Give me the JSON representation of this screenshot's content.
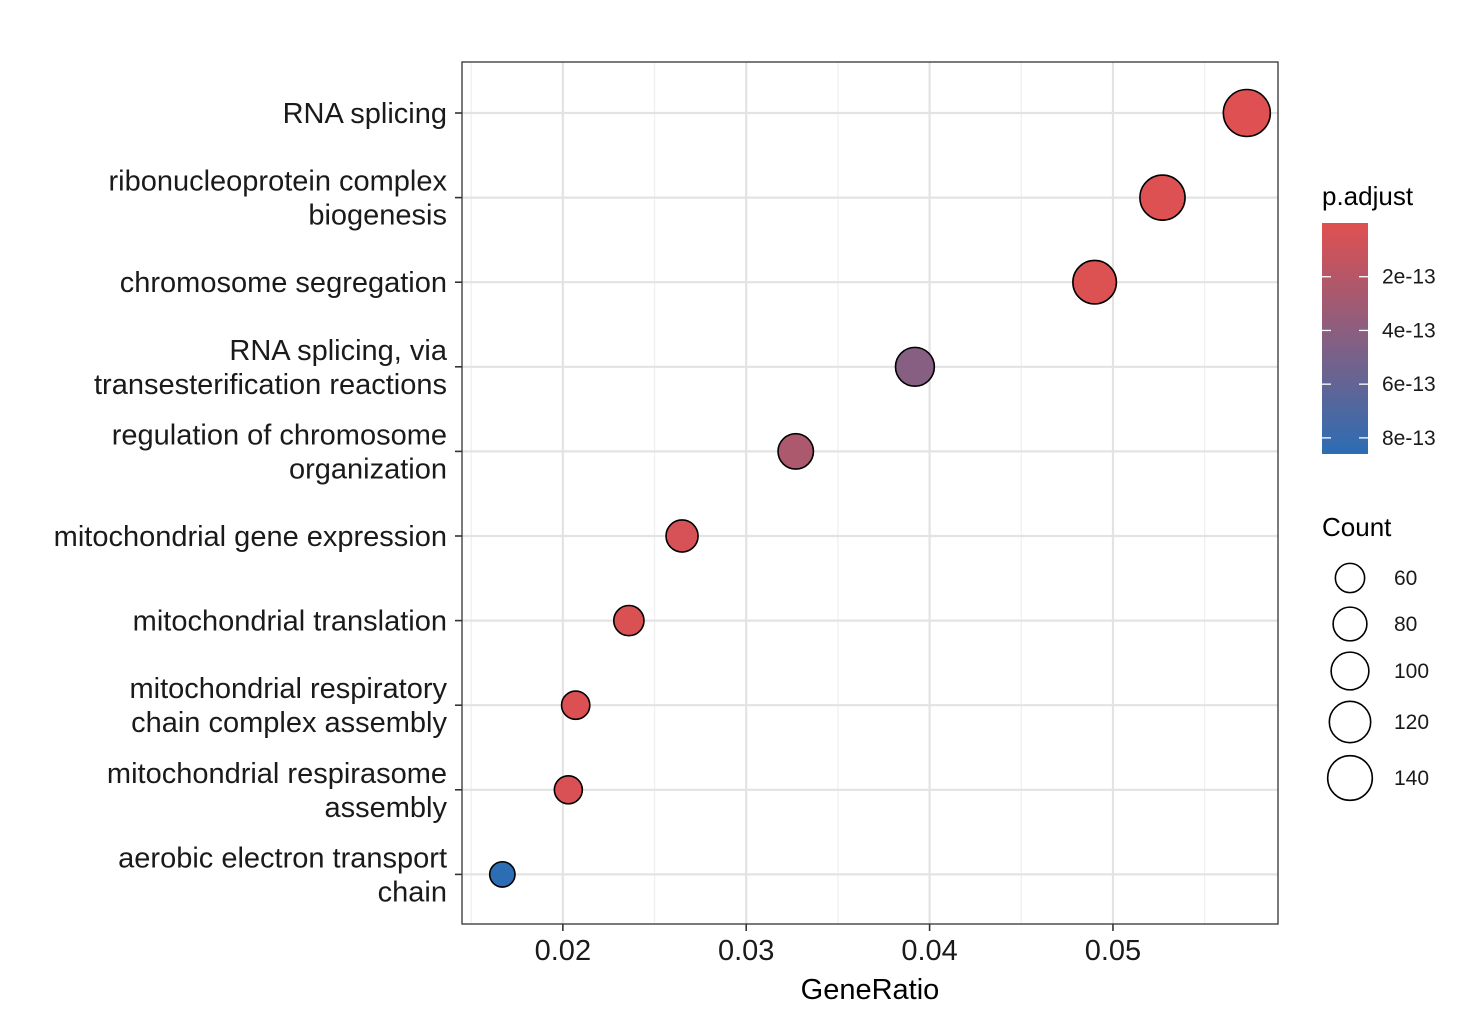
{
  "chart_data": {
    "type": "scatter",
    "xlabel": "GeneRatio",
    "ylabel": "",
    "xlim": [
      0.0145,
      0.059
    ],
    "x_ticks": [
      {
        "value": 0.02,
        "label": "0.02"
      },
      {
        "value": 0.03,
        "label": "0.03"
      },
      {
        "value": 0.04,
        "label": "0.04"
      },
      {
        "value": 0.05,
        "label": "0.05"
      }
    ],
    "grid": true,
    "categories": [
      {
        "lines": [
          "RNA splicing"
        ]
      },
      {
        "lines": [
          "ribonucleoprotein complex",
          "biogenesis"
        ]
      },
      {
        "lines": [
          "chromosome segregation"
        ]
      },
      {
        "lines": [
          "RNA splicing, via",
          "transesterification reactions"
        ]
      },
      {
        "lines": [
          "regulation of chromosome",
          "organization"
        ]
      },
      {
        "lines": [
          "mitochondrial gene expression"
        ]
      },
      {
        "lines": [
          "mitochondrial translation"
        ]
      },
      {
        "lines": [
          "mitochondrial respiratory",
          "chain complex assembly"
        ]
      },
      {
        "lines": [
          "mitochondrial respirasome",
          "assembly"
        ]
      },
      {
        "lines": [
          "aerobic electron transport",
          "chain"
        ]
      }
    ],
    "points": [
      {
        "x": 0.0573,
        "count": 155,
        "p_adjust": 1e-14
      },
      {
        "x": 0.0527,
        "count": 143,
        "p_adjust": 1.5e-14
      },
      {
        "x": 0.049,
        "count": 133,
        "p_adjust": 2e-14
      },
      {
        "x": 0.0392,
        "count": 106,
        "p_adjust": 4.3e-13
      },
      {
        "x": 0.0327,
        "count": 88,
        "p_adjust": 2.5e-13
      },
      {
        "x": 0.0265,
        "count": 72,
        "p_adjust": 5e-14
      },
      {
        "x": 0.0236,
        "count": 64,
        "p_adjust": 3e-14
      },
      {
        "x": 0.0207,
        "count": 56,
        "p_adjust": 2.5e-14
      },
      {
        "x": 0.0203,
        "count": 55,
        "p_adjust": 3.5e-14
      },
      {
        "x": 0.0167,
        "count": 45,
        "p_adjust": 8.6e-13
      }
    ],
    "color_legend": {
      "title": "p.adjust",
      "min": 0,
      "max": 8.6e-13,
      "low_color": "#e05050",
      "high_color": "#2c6db3",
      "ticks": [
        {
          "value": 2e-13,
          "label": "2e-13"
        },
        {
          "value": 4e-13,
          "label": "4e-13"
        },
        {
          "value": 6e-13,
          "label": "6e-13"
        },
        {
          "value": 8e-13,
          "label": "8e-13"
        }
      ]
    },
    "size_legend": {
      "title": "Count",
      "items": [
        {
          "value": 60,
          "label": "60"
        },
        {
          "value": 80,
          "label": "80"
        },
        {
          "value": 100,
          "label": "100"
        },
        {
          "value": 120,
          "label": "120"
        },
        {
          "value": 140,
          "label": "140"
        }
      ]
    },
    "legend_position": "right"
  }
}
